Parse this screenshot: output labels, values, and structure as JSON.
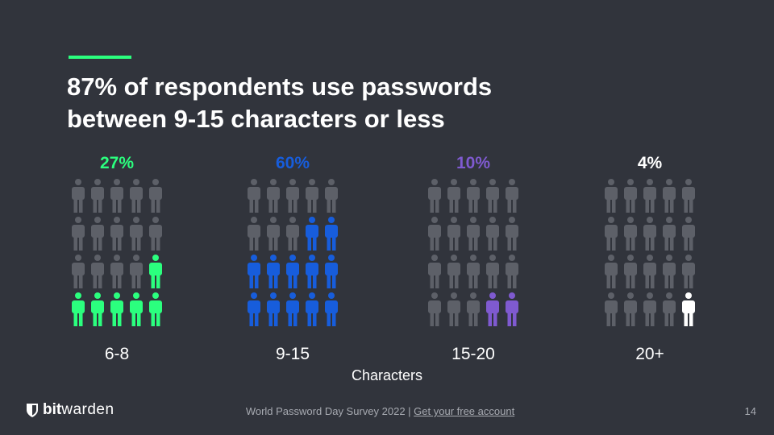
{
  "title_lines": [
    "87% of respondents use passwords",
    "between 9-15 characters or less"
  ],
  "chart_data": {
    "type": "pictogram",
    "icons_per_group": 20,
    "xlabel": "Characters",
    "categories": [
      "6-8",
      "9-15",
      "15-20",
      "20+"
    ],
    "values": [
      27,
      60,
      10,
      4
    ],
    "value_labels": [
      "27%",
      "60%",
      "10%",
      "4%"
    ],
    "highlighted_icons": [
      6,
      12,
      2,
      1
    ],
    "colors": [
      "#2bff7e",
      "#175ddc",
      "#7f5ad0",
      "#ffffff"
    ],
    "inactive_color": "#5d6068"
  },
  "footer": {
    "logo_bold": "bit",
    "logo_light": "warden",
    "survey_text": "World Password Day Survey 2022 |",
    "link_text": "Get your free account",
    "page_number": "14"
  }
}
